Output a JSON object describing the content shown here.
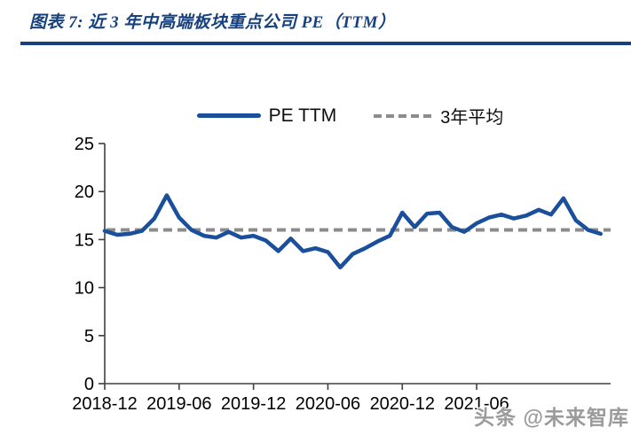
{
  "header": {
    "title": "图表 7:  近 3 年中高端板块重点公司 PE（TTM）"
  },
  "legend": {
    "series1": "PE TTM",
    "series2": "3年平均"
  },
  "watermark": {
    "text": "头条 @未来智库"
  },
  "colors": {
    "line": "#1A4F9C",
    "average": "#8C8C8C",
    "header": "#16417E",
    "axis": "#404040",
    "tick_text": "#000000"
  },
  "chart_data": {
    "type": "line",
    "title": "近 3 年中高端板块重点公司 PE（TTM）",
    "xlabel": "",
    "ylabel": "",
    "ylim": [
      0,
      25
    ],
    "yticks": [
      0,
      5,
      10,
      15,
      20,
      25
    ],
    "grid": false,
    "legend_position": "top",
    "x": [
      "2018-12",
      "2019-01",
      "2019-02",
      "2019-03",
      "2019-04",
      "2019-05",
      "2019-06",
      "2019-07",
      "2019-08",
      "2019-09",
      "2019-10",
      "2019-11",
      "2019-12",
      "2020-01",
      "2020-02",
      "2020-03",
      "2020-04",
      "2020-05",
      "2020-06",
      "2020-07",
      "2020-08",
      "2020-09",
      "2020-10",
      "2020-11",
      "2020-12",
      "2021-01",
      "2021-02",
      "2021-03",
      "2021-04",
      "2021-05",
      "2021-06",
      "2021-07",
      "2021-08",
      "2021-09",
      "2021-10",
      "2021-11",
      "2021-12",
      "2022-01",
      "2022-02",
      "2022-03",
      "2022-04"
    ],
    "series": [
      {
        "name": "PE TTM",
        "style": "solid",
        "values": [
          15.9,
          15.5,
          15.6,
          15.9,
          17.2,
          19.6,
          17.3,
          16.0,
          15.4,
          15.2,
          15.8,
          15.2,
          15.4,
          14.9,
          13.8,
          15.1,
          13.8,
          14.1,
          13.7,
          12.1,
          13.5,
          14.1,
          14.8,
          15.4,
          17.8,
          16.3,
          17.7,
          17.8,
          16.3,
          15.8,
          16.7,
          17.3,
          17.6,
          17.2,
          17.5,
          18.1,
          17.6,
          19.3,
          17.0,
          16.0,
          15.6
        ]
      },
      {
        "name": "3年平均",
        "style": "dashed",
        "value": 16.0
      }
    ],
    "xtick_labels": [
      "2018-12",
      "2019-06",
      "2019-12",
      "2020-06",
      "2020-12",
      "2021-06"
    ],
    "xtick_indices": [
      0,
      6,
      12,
      18,
      24,
      30
    ]
  }
}
